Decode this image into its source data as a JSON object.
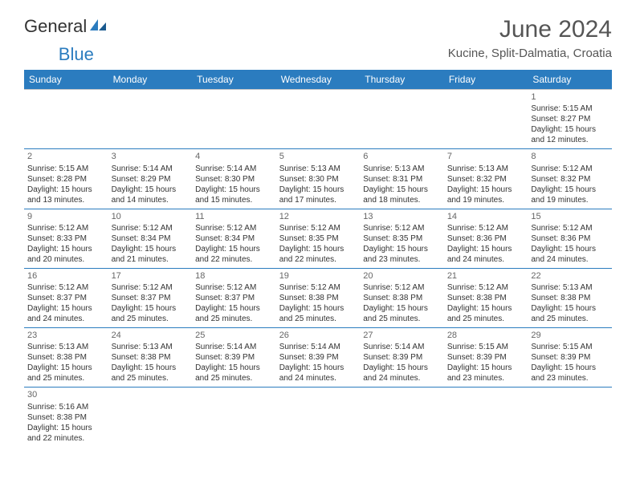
{
  "header": {
    "logo_text_1": "General",
    "logo_text_2": "Blue",
    "title": "June 2024",
    "subtitle": "Kucine, Split-Dalmatia, Croatia"
  },
  "colors": {
    "header_bg": "#2b7cbf",
    "header_text": "#ffffff",
    "week_divider": "#2b7cbf",
    "cell_border": "#c8c8c8",
    "text": "#333333",
    "title_color": "#555555"
  },
  "day_headers": [
    "Sunday",
    "Monday",
    "Tuesday",
    "Wednesday",
    "Thursday",
    "Friday",
    "Saturday"
  ],
  "weeks": [
    [
      null,
      null,
      null,
      null,
      null,
      null,
      {
        "n": "1",
        "sr": "Sunrise: 5:15 AM",
        "ss": "Sunset: 8:27 PM",
        "dl1": "Daylight: 15 hours",
        "dl2": "and 12 minutes."
      }
    ],
    [
      {
        "n": "2",
        "sr": "Sunrise: 5:15 AM",
        "ss": "Sunset: 8:28 PM",
        "dl1": "Daylight: 15 hours",
        "dl2": "and 13 minutes."
      },
      {
        "n": "3",
        "sr": "Sunrise: 5:14 AM",
        "ss": "Sunset: 8:29 PM",
        "dl1": "Daylight: 15 hours",
        "dl2": "and 14 minutes."
      },
      {
        "n": "4",
        "sr": "Sunrise: 5:14 AM",
        "ss": "Sunset: 8:30 PM",
        "dl1": "Daylight: 15 hours",
        "dl2": "and 15 minutes."
      },
      {
        "n": "5",
        "sr": "Sunrise: 5:13 AM",
        "ss": "Sunset: 8:30 PM",
        "dl1": "Daylight: 15 hours",
        "dl2": "and 17 minutes."
      },
      {
        "n": "6",
        "sr": "Sunrise: 5:13 AM",
        "ss": "Sunset: 8:31 PM",
        "dl1": "Daylight: 15 hours",
        "dl2": "and 18 minutes."
      },
      {
        "n": "7",
        "sr": "Sunrise: 5:13 AM",
        "ss": "Sunset: 8:32 PM",
        "dl1": "Daylight: 15 hours",
        "dl2": "and 19 minutes."
      },
      {
        "n": "8",
        "sr": "Sunrise: 5:12 AM",
        "ss": "Sunset: 8:32 PM",
        "dl1": "Daylight: 15 hours",
        "dl2": "and 19 minutes."
      }
    ],
    [
      {
        "n": "9",
        "sr": "Sunrise: 5:12 AM",
        "ss": "Sunset: 8:33 PM",
        "dl1": "Daylight: 15 hours",
        "dl2": "and 20 minutes."
      },
      {
        "n": "10",
        "sr": "Sunrise: 5:12 AM",
        "ss": "Sunset: 8:34 PM",
        "dl1": "Daylight: 15 hours",
        "dl2": "and 21 minutes."
      },
      {
        "n": "11",
        "sr": "Sunrise: 5:12 AM",
        "ss": "Sunset: 8:34 PM",
        "dl1": "Daylight: 15 hours",
        "dl2": "and 22 minutes."
      },
      {
        "n": "12",
        "sr": "Sunrise: 5:12 AM",
        "ss": "Sunset: 8:35 PM",
        "dl1": "Daylight: 15 hours",
        "dl2": "and 22 minutes."
      },
      {
        "n": "13",
        "sr": "Sunrise: 5:12 AM",
        "ss": "Sunset: 8:35 PM",
        "dl1": "Daylight: 15 hours",
        "dl2": "and 23 minutes."
      },
      {
        "n": "14",
        "sr": "Sunrise: 5:12 AM",
        "ss": "Sunset: 8:36 PM",
        "dl1": "Daylight: 15 hours",
        "dl2": "and 24 minutes."
      },
      {
        "n": "15",
        "sr": "Sunrise: 5:12 AM",
        "ss": "Sunset: 8:36 PM",
        "dl1": "Daylight: 15 hours",
        "dl2": "and 24 minutes."
      }
    ],
    [
      {
        "n": "16",
        "sr": "Sunrise: 5:12 AM",
        "ss": "Sunset: 8:37 PM",
        "dl1": "Daylight: 15 hours",
        "dl2": "and 24 minutes."
      },
      {
        "n": "17",
        "sr": "Sunrise: 5:12 AM",
        "ss": "Sunset: 8:37 PM",
        "dl1": "Daylight: 15 hours",
        "dl2": "and 25 minutes."
      },
      {
        "n": "18",
        "sr": "Sunrise: 5:12 AM",
        "ss": "Sunset: 8:37 PM",
        "dl1": "Daylight: 15 hours",
        "dl2": "and 25 minutes."
      },
      {
        "n": "19",
        "sr": "Sunrise: 5:12 AM",
        "ss": "Sunset: 8:38 PM",
        "dl1": "Daylight: 15 hours",
        "dl2": "and 25 minutes."
      },
      {
        "n": "20",
        "sr": "Sunrise: 5:12 AM",
        "ss": "Sunset: 8:38 PM",
        "dl1": "Daylight: 15 hours",
        "dl2": "and 25 minutes."
      },
      {
        "n": "21",
        "sr": "Sunrise: 5:12 AM",
        "ss": "Sunset: 8:38 PM",
        "dl1": "Daylight: 15 hours",
        "dl2": "and 25 minutes."
      },
      {
        "n": "22",
        "sr": "Sunrise: 5:13 AM",
        "ss": "Sunset: 8:38 PM",
        "dl1": "Daylight: 15 hours",
        "dl2": "and 25 minutes."
      }
    ],
    [
      {
        "n": "23",
        "sr": "Sunrise: 5:13 AM",
        "ss": "Sunset: 8:38 PM",
        "dl1": "Daylight: 15 hours",
        "dl2": "and 25 minutes."
      },
      {
        "n": "24",
        "sr": "Sunrise: 5:13 AM",
        "ss": "Sunset: 8:38 PM",
        "dl1": "Daylight: 15 hours",
        "dl2": "and 25 minutes."
      },
      {
        "n": "25",
        "sr": "Sunrise: 5:14 AM",
        "ss": "Sunset: 8:39 PM",
        "dl1": "Daylight: 15 hours",
        "dl2": "and 25 minutes."
      },
      {
        "n": "26",
        "sr": "Sunrise: 5:14 AM",
        "ss": "Sunset: 8:39 PM",
        "dl1": "Daylight: 15 hours",
        "dl2": "and 24 minutes."
      },
      {
        "n": "27",
        "sr": "Sunrise: 5:14 AM",
        "ss": "Sunset: 8:39 PM",
        "dl1": "Daylight: 15 hours",
        "dl2": "and 24 minutes."
      },
      {
        "n": "28",
        "sr": "Sunrise: 5:15 AM",
        "ss": "Sunset: 8:39 PM",
        "dl1": "Daylight: 15 hours",
        "dl2": "and 23 minutes."
      },
      {
        "n": "29",
        "sr": "Sunrise: 5:15 AM",
        "ss": "Sunset: 8:39 PM",
        "dl1": "Daylight: 15 hours",
        "dl2": "and 23 minutes."
      }
    ],
    [
      {
        "n": "30",
        "sr": "Sunrise: 5:16 AM",
        "ss": "Sunset: 8:38 PM",
        "dl1": "Daylight: 15 hours",
        "dl2": "and 22 minutes."
      },
      null,
      null,
      null,
      null,
      null,
      null
    ]
  ]
}
